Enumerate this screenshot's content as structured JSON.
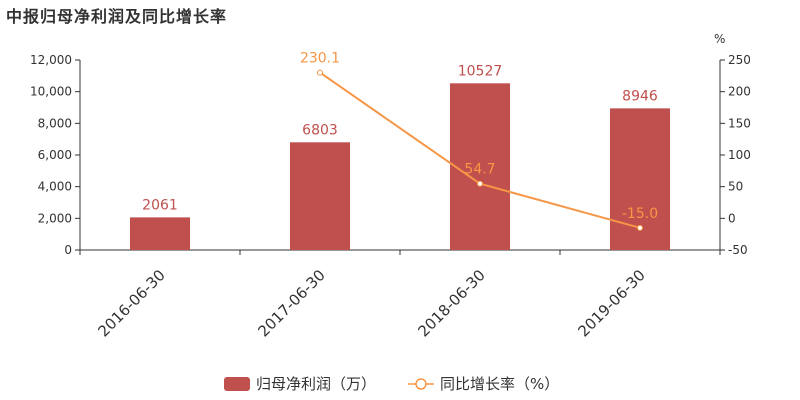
{
  "chart_data": {
    "type": "bar",
    "title": "中报归母净利润及同比增长率",
    "categories": [
      "2016-06-30",
      "2017-06-30",
      "2018-06-30",
      "2019-06-30"
    ],
    "series": [
      {
        "name": "归母净利润（万）",
        "type": "bar",
        "axis": "left",
        "color": "#c0504d",
        "values": [
          2061,
          6803,
          10527,
          8946
        ],
        "labels": [
          "2061",
          "6803",
          "10527",
          "8946"
        ]
      },
      {
        "name": "同比增长率（%）",
        "type": "line",
        "axis": "right",
        "color": "#f79646",
        "values": [
          null,
          230.1,
          54.7,
          -15.0
        ],
        "labels": [
          "",
          "230.1",
          "54.7",
          "-15.0"
        ]
      }
    ],
    "y_left": {
      "min": 0,
      "max": 12000,
      "ticks": [
        0,
        2000,
        4000,
        6000,
        8000,
        10000,
        12000
      ],
      "tick_labels": [
        "0",
        "2,000",
        "4,000",
        "6,000",
        "8,000",
        "10,000",
        "12,000"
      ]
    },
    "y_right": {
      "unit": "%",
      "min": -50,
      "max": 250,
      "ticks": [
        -50,
        0,
        50,
        100,
        150,
        200,
        250
      ],
      "tick_labels": [
        "-50",
        "0",
        "50",
        "100",
        "150",
        "200",
        "250"
      ]
    },
    "legend_position": "bottom",
    "grid": false
  }
}
